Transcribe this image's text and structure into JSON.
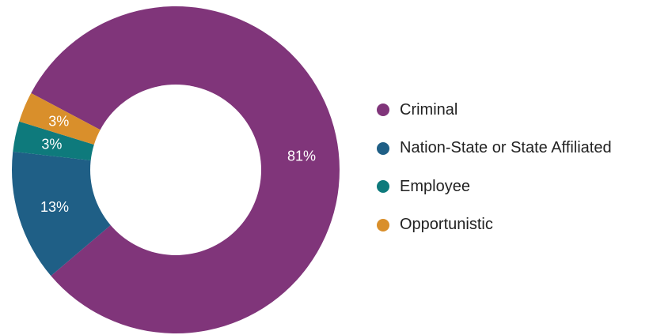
{
  "chart_data": {
    "type": "pie",
    "donut": true,
    "title": "",
    "legend_position": "right",
    "slices": [
      {
        "name": "Criminal",
        "value": 81,
        "label": "81%",
        "color": "#80357A"
      },
      {
        "name": "Nation-State or State Affiliated",
        "value": 13,
        "label": "13%",
        "color": "#1F5F86"
      },
      {
        "name": "Employee",
        "value": 3,
        "label": "3%",
        "color": "#0E7A7C"
      },
      {
        "name": "Opportunistic",
        "value": 3,
        "label": "3%",
        "color": "#D98F2B"
      }
    ]
  }
}
